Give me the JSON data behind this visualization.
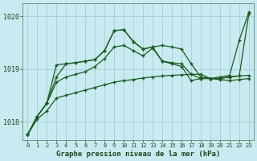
{
  "title": "Graphe pression niveau de la mer (hPa)",
  "background_color": "#c8eaf0",
  "plot_bg_color": "#c8eaf0",
  "grid_color": "#a0c8d0",
  "line_color": "#1a5c1a",
  "ylim": [
    1017.65,
    1020.25
  ],
  "yticks": [
    1018,
    1019,
    1020
  ],
  "xlim": [
    -0.5,
    23.5
  ],
  "xticks": [
    0,
    1,
    2,
    3,
    4,
    5,
    6,
    7,
    8,
    9,
    10,
    11,
    12,
    13,
    14,
    15,
    16,
    17,
    18,
    19,
    20,
    21,
    22,
    23
  ],
  "series": [
    [
      1017.75,
      1018.05,
      1018.2,
      1018.45,
      1018.5,
      1018.55,
      1018.6,
      1018.65,
      1018.7,
      1018.75,
      1018.78,
      1018.8,
      1018.83,
      1018.85,
      1018.87,
      1018.88,
      1018.89,
      1018.9,
      1018.9,
      1018.82,
      1018.8,
      1018.78,
      1018.8,
      1018.82
    ],
    [
      1017.75,
      1018.1,
      1018.35,
      1018.75,
      1018.85,
      1018.9,
      1018.95,
      1019.05,
      1019.2,
      1019.42,
      1019.45,
      1019.35,
      1019.25,
      1019.4,
      1019.15,
      1019.12,
      1019.1,
      1018.9,
      1018.82,
      1018.82,
      1018.82,
      1018.85,
      1018.87,
      1018.88
    ],
    [
      1017.75,
      1018.1,
      1018.35,
      1018.85,
      1019.1,
      1019.12,
      1019.15,
      1019.18,
      1019.35,
      1019.73,
      1019.75,
      1019.52,
      1019.38,
      1019.42,
      1019.15,
      1019.1,
      1019.05,
      1018.78,
      1018.82,
      1018.82,
      1018.82,
      1018.85,
      1018.87,
      1020.05
    ],
    [
      1017.75,
      1018.1,
      1018.35,
      1019.08,
      1019.1,
      1019.12,
      1019.15,
      1019.18,
      1019.35,
      1019.73,
      1019.75,
      1019.52,
      1019.38,
      1019.42,
      1019.45,
      1019.42,
      1019.38,
      1019.1,
      1018.85,
      1018.82,
      1018.85,
      1018.88,
      1019.55,
      1020.08
    ]
  ]
}
